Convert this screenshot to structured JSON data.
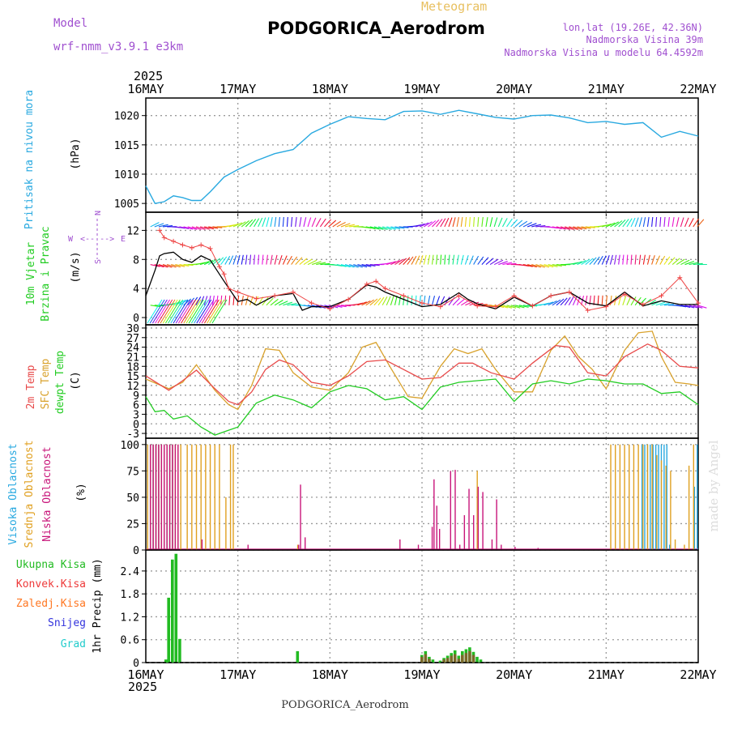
{
  "header": {
    "model_label": "Model",
    "model_name": "wrf-nmm_v3.9.1 e3km",
    "product": "Meteogram",
    "station": "PODGORICA_Aerodrom",
    "coords": "lon,lat (19.26E, 42.36N)",
    "elevation": "Nadmorska Visina 39m",
    "model_elevation": "Nadmorska Visina u modelu 64.4592m"
  },
  "footer": {
    "station": "PODGORICA_Aerodrom",
    "credit": "made by Angel"
  },
  "time_axis": {
    "year": "2025",
    "days": [
      "16MAY",
      "17MAY",
      "18MAY",
      "19MAY",
      "20MAY",
      "21MAY",
      "22MAY"
    ]
  },
  "colors": {
    "pressure": "#29a9e0",
    "wind_label": "#22cc22",
    "wind_obs": "#000000",
    "wind_gust": "#ee4444",
    "t2m": "#e84a4a",
    "tsfc": "#d9a22c",
    "dewpt": "#22cc22",
    "cloud_high": "#29a9e0",
    "cloud_mid": "#e0a020",
    "cloud_low": "#c8157a",
    "precip_total": "#22bb22",
    "precip_conv": "#ee3a3a",
    "precip_frozen": "#ff7722",
    "snow": "#3333dd",
    "hail": "#22cccc",
    "purple_text": "#a050d0",
    "grid": "#9a9a9a"
  },
  "chart_data": [
    {
      "id": "pressure",
      "type": "line",
      "units": "(hPa)",
      "ylabel": "Pritisak na nivou mora",
      "yticks": [
        "1005",
        "1010",
        "1015",
        "1020"
      ],
      "ylim": [
        1003.5,
        1023
      ],
      "x_days": [
        0,
        0.1,
        0.2,
        0.3,
        0.4,
        0.5,
        0.6,
        0.7,
        0.85,
        1.0,
        1.2,
        1.4,
        1.6,
        1.8,
        2.0,
        2.2,
        2.4,
        2.6,
        2.8,
        3.0,
        3.2,
        3.4,
        3.6,
        3.8,
        4.0,
        4.2,
        4.4,
        4.6,
        4.8,
        5.0,
        5.2,
        5.4,
        5.6,
        5.8,
        6.0
      ],
      "values": [
        1008,
        1005,
        1005.3,
        1006.3,
        1006,
        1005.5,
        1005.5,
        1007,
        1009.5,
        1010.8,
        1012.3,
        1013.5,
        1014.2,
        1017,
        1018.5,
        1019.8,
        1019.5,
        1019.3,
        1020.7,
        1020.8,
        1020.2,
        1020.9,
        1020.3,
        1019.7,
        1019.4,
        1020,
        1020.1,
        1019.6,
        1018.8,
        1019,
        1018.5,
        1018.8,
        1016.3,
        1017.3,
        1016.5
      ]
    },
    {
      "id": "wind",
      "type": "line",
      "units": "(m/s)",
      "ylabel": "10m Vjetar Brzina i Pravac",
      "yticks": [
        "0",
        "4",
        "8",
        "12"
      ],
      "ylim": [
        -1,
        14.5
      ],
      "compass": [
        "N",
        "W",
        "E",
        "S"
      ],
      "barb_levels": [
        12.5,
        7.3,
        1.7
      ],
      "series": [
        {
          "name": "10m Vjetar",
          "x_days": [
            0,
            0.1,
            0.15,
            0.2,
            0.3,
            0.4,
            0.5,
            0.6,
            0.7,
            0.85,
            1.0,
            1.1,
            1.2,
            1.4,
            1.6,
            1.7,
            1.8,
            2.0,
            2.2,
            2.4,
            2.5,
            2.6,
            2.8,
            3.0,
            3.2,
            3.4,
            3.5,
            3.6,
            3.8,
            4.0,
            4.2,
            4.4,
            4.6,
            4.8,
            5.0,
            5.2,
            5.4,
            5.6,
            5.8,
            6.0
          ],
          "values": [
            3,
            6.5,
            8.5,
            8.8,
            9,
            8,
            7.6,
            8.5,
            7.9,
            5,
            2.2,
            2.5,
            1.7,
            3,
            3.3,
            1,
            1.5,
            1.5,
            2.5,
            4.5,
            4.2,
            3.5,
            2.5,
            1.5,
            1.8,
            3.4,
            2.5,
            1.9,
            1.2,
            2.8,
            1.6,
            3,
            3.5,
            2,
            1.6,
            3.5,
            1.6,
            2.3,
            1.8,
            1.8
          ]
        },
        {
          "name": "Udari vjetra",
          "x_days": [
            0.15,
            0.2,
            0.3,
            0.4,
            0.5,
            0.6,
            0.7,
            0.8,
            0.85,
            0.9,
            1.0,
            1.2,
            1.4,
            1.6,
            1.8,
            2.0,
            2.2,
            2.4,
            2.5,
            2.6,
            2.8,
            3.0,
            3.2,
            3.4,
            3.6,
            3.8,
            4.0,
            4.2,
            4.4,
            4.6,
            4.8,
            5.0,
            5.2,
            5.4,
            5.6,
            5.8,
            6.0
          ],
          "values": [
            12,
            11,
            10.5,
            10,
            9.6,
            10,
            9.5,
            7,
            6,
            4,
            3.5,
            2.6,
            3,
            3.5,
            2,
            1.2,
            2.5,
            4.6,
            5,
            4,
            3,
            2,
            1.5,
            3,
            1.6,
            1.5,
            3,
            1.6,
            3,
            3.5,
            1,
            1.5,
            3.2,
            1.8,
            3,
            5.5,
            2
          ]
        }
      ]
    },
    {
      "id": "temperature",
      "type": "line",
      "units": "(C)",
      "ylabels": [
        "2m Temp",
        "SFC Temp",
        "dewpt Temp"
      ],
      "yticks": [
        "-3",
        "0",
        "3",
        "6",
        "9",
        "12",
        "15",
        "18",
        "21",
        "24",
        "27",
        "30"
      ],
      "ylim": [
        -4.5,
        31
      ],
      "series": [
        {
          "name": "2m Temp",
          "x_days": [
            0,
            0.25,
            0.4,
            0.55,
            0.75,
            0.9,
            1.0,
            1.15,
            1.3,
            1.45,
            1.6,
            1.8,
            2.0,
            2.2,
            2.4,
            2.6,
            2.8,
            3.0,
            3.2,
            3.4,
            3.55,
            3.75,
            4.0,
            4.2,
            4.45,
            4.6,
            4.8,
            5.0,
            5.2,
            5.45,
            5.6,
            5.8,
            6.0
          ],
          "values": [
            15,
            10.5,
            13.5,
            16.8,
            11,
            7,
            6,
            10,
            17,
            20,
            18.5,
            13,
            12,
            15,
            19.5,
            20,
            17,
            14,
            14.5,
            19,
            19,
            16,
            14,
            19,
            24.5,
            24,
            16,
            15,
            21,
            25,
            23,
            18,
            17.5
          ]
        },
        {
          "name": "SFC Temp",
          "x_days": [
            0,
            0.25,
            0.4,
            0.55,
            0.75,
            0.9,
            1.0,
            1.15,
            1.3,
            1.45,
            1.6,
            1.8,
            2.0,
            2.2,
            2.35,
            2.5,
            2.65,
            2.85,
            3.0,
            3.2,
            3.35,
            3.5,
            3.65,
            3.8,
            4.0,
            4.2,
            4.4,
            4.55,
            4.7,
            4.85,
            5.0,
            5.2,
            5.35,
            5.5,
            5.6,
            5.75,
            5.9,
            6.0
          ],
          "values": [
            14,
            11,
            13,
            18.5,
            10.5,
            6,
            4.5,
            12,
            23.5,
            23,
            16,
            11.5,
            10.5,
            16,
            24,
            25.5,
            18,
            8.5,
            8,
            18,
            23.5,
            22,
            23.5,
            17,
            10,
            10,
            23,
            27.5,
            21,
            17,
            11,
            23,
            28.5,
            29,
            21,
            13,
            12.5,
            12
          ]
        },
        {
          "name": "dewpt Temp",
          "x_days": [
            0,
            0.1,
            0.2,
            0.3,
            0.45,
            0.6,
            0.75,
            0.9,
            1.0,
            1.2,
            1.4,
            1.6,
            1.8,
            2.0,
            2.2,
            2.4,
            2.6,
            2.8,
            3.0,
            3.2,
            3.4,
            3.6,
            3.8,
            4.0,
            4.2,
            4.4,
            4.6,
            4.8,
            5.0,
            5.2,
            5.4,
            5.6,
            5.8,
            6.0
          ],
          "values": [
            8.5,
            3.8,
            4.2,
            1.5,
            2.5,
            -1,
            -3.5,
            -2,
            -1,
            6.5,
            9,
            7.5,
            5,
            10,
            12,
            11,
            7.5,
            8.5,
            4.5,
            11.5,
            13,
            13.5,
            14,
            7,
            12.5,
            13.5,
            12.5,
            14,
            13.5,
            12.5,
            12.5,
            9.5,
            10,
            6
          ]
        }
      ]
    },
    {
      "id": "clouds",
      "type": "bar",
      "units": "(%)",
      "ylabels": [
        "Visoka Oblacnost",
        "Srednja Oblacnost",
        "Niska Oblacnost"
      ],
      "yticks": [
        "0",
        "25",
        "50",
        "75",
        "100"
      ],
      "ylim": [
        0,
        106
      ],
      "series": [
        {
          "name": "Visoka Oblacnost",
          "x_days": [
            0.03,
            0.06,
            0.09,
            0.12,
            0.15,
            0.18,
            0.21,
            0.24,
            0.27,
            0.3,
            0.33,
            0.36,
            5.4,
            5.43,
            5.46,
            5.49,
            5.52,
            5.55,
            5.58,
            5.61,
            5.64,
            5.67,
            5.7,
            5.97,
            6.0
          ],
          "values": [
            100,
            100,
            100,
            100,
            100,
            100,
            100,
            50,
            100,
            100,
            50,
            50,
            100,
            100,
            100,
            100,
            100,
            100,
            100,
            100,
            100,
            100,
            5,
            60,
            100
          ]
        },
        {
          "name": "Srednja Oblacnost",
          "x_days": [
            0.02,
            0.05,
            0.08,
            0.11,
            0.14,
            0.17,
            0.2,
            0.23,
            0.26,
            0.29,
            0.32,
            0.35,
            0.38,
            0.45,
            0.5,
            0.55,
            0.6,
            0.65,
            0.7,
            0.75,
            0.8,
            0.87,
            0.92,
            0.95,
            1.65,
            3.6,
            5.05,
            5.1,
            5.15,
            5.2,
            5.25,
            5.3,
            5.35,
            5.4,
            5.45,
            5.5,
            5.55,
            5.6,
            5.65,
            5.7,
            5.75,
            5.85,
            5.9,
            5.95
          ],
          "values": [
            100,
            100,
            100,
            100,
            100,
            100,
            100,
            100,
            100,
            100,
            100,
            100,
            100,
            100,
            100,
            100,
            100,
            100,
            100,
            100,
            100,
            50,
            100,
            100,
            5,
            75,
            100,
            100,
            100,
            100,
            100,
            100,
            100,
            100,
            100,
            100,
            90,
            85,
            80,
            75,
            10,
            5,
            80,
            100
          ]
        },
        {
          "name": "Niska Oblacnost",
          "x_days": [
            0.04,
            0.07,
            0.1,
            0.13,
            0.16,
            0.19,
            0.22,
            0.25,
            0.28,
            0.31,
            0.34,
            0.6,
            1.1,
            1.65,
            1.67,
            1.72,
            2.75,
            2.95,
            3.1,
            3.12,
            3.15,
            3.18,
            3.3,
            3.35,
            3.4,
            3.45,
            3.5,
            3.55,
            3.6,
            3.65,
            3.75,
            3.8,
            3.85,
            4.0,
            4.25
          ],
          "values": [
            100,
            100,
            100,
            100,
            100,
            100,
            100,
            100,
            100,
            100,
            100,
            10,
            5,
            5,
            62,
            12,
            10,
            5,
            22,
            67,
            42,
            20,
            75,
            76,
            5,
            33,
            58,
            33,
            60,
            55,
            10,
            48,
            5,
            3,
            2
          ]
        }
      ]
    },
    {
      "id": "precip",
      "type": "bar",
      "units": "1hr Precip (mm)",
      "legend": [
        "Ukupna Kisa",
        "Konvek.Kisa",
        "Zaledj.Kisa",
        "Snijeg",
        "Grad"
      ],
      "yticks": [
        "0",
        "0.6",
        "1.2",
        "1.8",
        "2.4"
      ],
      "ylim": [
        0,
        2.95
      ],
      "series": [
        {
          "name": "Ukupna Kisa",
          "x_days": [
            0.22,
            0.25,
            0.29,
            0.33,
            0.37,
            1.65,
            3.0,
            3.04,
            3.08,
            3.12,
            3.2,
            3.24,
            3.28,
            3.32,
            3.36,
            3.4,
            3.44,
            3.48,
            3.52,
            3.56,
            3.6,
            3.64
          ],
          "values": [
            0.08,
            1.7,
            2.7,
            2.85,
            0.62,
            0.3,
            0.2,
            0.3,
            0.15,
            0.08,
            0.05,
            0.12,
            0.18,
            0.25,
            0.32,
            0.18,
            0.3,
            0.35,
            0.4,
            0.28,
            0.15,
            0.08
          ]
        },
        {
          "name": "Konvek.Kisa",
          "x_days": [
            3.0,
            3.04,
            3.08,
            3.24,
            3.28,
            3.32,
            3.36,
            3.4,
            3.44,
            3.48,
            3.52,
            3.56
          ],
          "values": [
            0.15,
            0.22,
            0.1,
            0.08,
            0.12,
            0.18,
            0.22,
            0.1,
            0.2,
            0.25,
            0.3,
            0.2
          ]
        }
      ]
    }
  ]
}
